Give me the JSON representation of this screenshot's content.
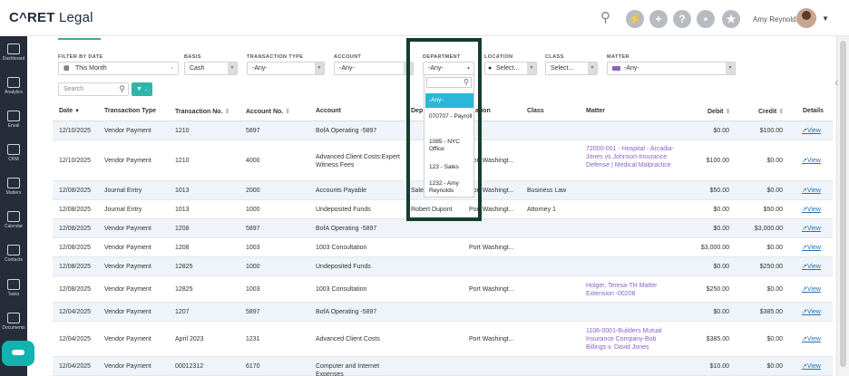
{
  "app": {
    "logo": "CARET Legal",
    "user_name": "Amy Reynolds"
  },
  "sidebar": [
    {
      "label": "Dashboard",
      "icon": "dashboard-icon"
    },
    {
      "label": "Analytics",
      "icon": "analytics-icon"
    },
    {
      "label": "Email",
      "icon": "email-icon"
    },
    {
      "label": "CRM",
      "icon": "crm-icon"
    },
    {
      "label": "Matters",
      "icon": "matters-icon"
    },
    {
      "label": "Calendar",
      "icon": "calendar-icon"
    },
    {
      "label": "Contacts",
      "icon": "contacts-icon"
    },
    {
      "label": "Tasks",
      "icon": "tasks-icon"
    },
    {
      "label": "Documents",
      "icon": "documents-icon"
    }
  ],
  "filters": {
    "date": {
      "label": "FILTER BY DATE",
      "value": "This Month"
    },
    "basis": {
      "label": "BASIS",
      "value": "Cash"
    },
    "transaction_type": {
      "label": "TRANSACTION TYPE",
      "value": "-Any-"
    },
    "account": {
      "label": "ACCOUNT",
      "value": "-Any-"
    },
    "department": {
      "label": "DEPARTMENT",
      "value": "-Any-"
    },
    "location": {
      "label": "LOCATION",
      "value": "Select..."
    },
    "class": {
      "label": "CLASS",
      "value": "Select..."
    },
    "matter": {
      "label": "MATTER",
      "value": "-Any-"
    },
    "search_placeholder": "Search"
  },
  "department_dropdown": {
    "options": [
      "-Any-",
      "070707 - Payroll",
      "1085 - NYC Office",
      "123 - Sales",
      "1232 - Amy Reynolds"
    ],
    "selected_color": "#2ab8d8",
    "highlight_color": "#153d2f"
  },
  "table": {
    "headers": {
      "date": "Date",
      "type": "Transaction Type",
      "trans_no": "Transaction No.",
      "account_no": "Account No.",
      "account": "Account",
      "department": "Dep",
      "location": "ation",
      "class": "Class",
      "matter": "Matter",
      "debit": "Debit",
      "credit": "Credit",
      "details": "Details"
    },
    "view_label": "View",
    "rows": [
      {
        "date": "12/10/2025",
        "type": "Vendor Payment",
        "trans_no": "1210",
        "account_no": "5897",
        "account": "BofA Operating -5897",
        "dept": "",
        "loc": "",
        "class": "",
        "matter": "",
        "debit": "$0.00",
        "credit": "$100.00"
      },
      {
        "date": "12/10/2025",
        "type": "Vendor Payment",
        "trans_no": "1210",
        "account_no": "4000",
        "account": "Advanced Client Costs:Expert Witness Fees",
        "dept": "",
        "loc": "Port Washingt...",
        "class": "",
        "matter": "72000-001 - Hospital - Arcadia-Jones vs Johnson-Insurance Defense | Medical Malpractice",
        "debit": "$100.00",
        "credit": "$0.00"
      },
      {
        "date": "12/08/2025",
        "type": "Journal Entry",
        "trans_no": "1013",
        "account_no": "2000",
        "account": "Accounts Payable",
        "dept": "Sale",
        "loc": "Port Washingt...",
        "class": "Business Law",
        "matter": "",
        "debit": "$50.00",
        "credit": "$0.00"
      },
      {
        "date": "12/08/2025",
        "type": "Journal Entry",
        "trans_no": "1013",
        "account_no": "1000",
        "account": "Undeposited Funds",
        "dept": "Robert Dupont",
        "loc": "Port Washingt...",
        "class": "Attorney 1",
        "matter": "",
        "debit": "$0.00",
        "credit": "$50.00"
      },
      {
        "date": "12/08/2025",
        "type": "Vendor Payment",
        "trans_no": "1208",
        "account_no": "5897",
        "account": "BofA Operating -5897",
        "dept": "",
        "loc": "",
        "class": "",
        "matter": "",
        "debit": "$0.00",
        "credit": "$3,000.00"
      },
      {
        "date": "12/08/2025",
        "type": "Vendor Payment",
        "trans_no": "1208",
        "account_no": "1003",
        "account": "1003 Consultation",
        "dept": "",
        "loc": "Port Washingt...",
        "class": "",
        "matter": "",
        "debit": "$3,000.00",
        "credit": "$0.00"
      },
      {
        "date": "12/08/2025",
        "type": "Vendor Payment",
        "trans_no": "12825",
        "account_no": "1000",
        "account": "Undeposited Funds",
        "dept": "",
        "loc": "",
        "class": "",
        "matter": "",
        "debit": "$0.00",
        "credit": "$250.00"
      },
      {
        "date": "12/08/2025",
        "type": "Vendor Payment",
        "trans_no": "12825",
        "account_no": "1003",
        "account": "1003 Consultation",
        "dept": "",
        "loc": "Port Washingt...",
        "class": "",
        "matter": "Holger, Teresa-TH Matter Extension -00208",
        "debit": "$250.00",
        "credit": "$0.00"
      },
      {
        "date": "12/04/2025",
        "type": "Vendor Payment",
        "trans_no": "1207",
        "account_no": "5897",
        "account": "BofA Operating -5897",
        "dept": "",
        "loc": "",
        "class": "",
        "matter": "",
        "debit": "$0.00",
        "credit": "$385.00"
      },
      {
        "date": "12/04/2025",
        "type": "Vendor Payment",
        "trans_no": "April 2023",
        "account_no": "1231",
        "account": "Advanced Client Costs",
        "dept": "",
        "loc": "Port Washingt...",
        "class": "",
        "matter": "1106-0001-Builders Mutual Insurance Company-Bob Billings v. David Jones",
        "debit": "$385.00",
        "credit": "$0.00"
      },
      {
        "date": "12/04/2025",
        "type": "Vendor Payment",
        "trans_no": "00012312",
        "account_no": "6170",
        "account": "Computer and Internet Expenses",
        "dept": "",
        "loc": "",
        "class": "",
        "matter": "",
        "debit": "$10.00",
        "credit": "$0.00"
      }
    ]
  }
}
